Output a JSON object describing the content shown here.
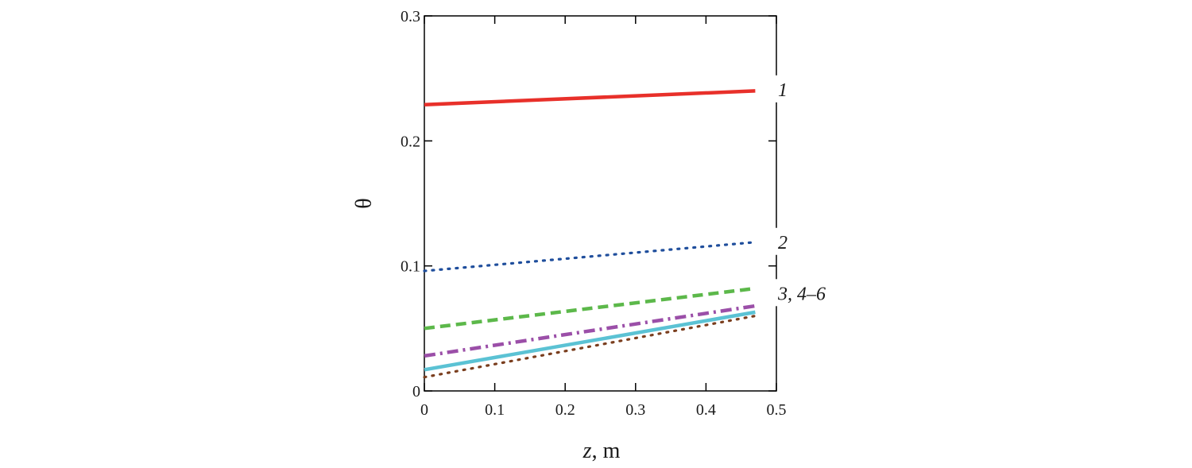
{
  "chart_data": {
    "type": "line",
    "xlabel_var": "z",
    "xlabel_unit": ", m",
    "ylabel": "θ",
    "xlim": [
      0,
      0.5
    ],
    "ylim": [
      0,
      0.3
    ],
    "x_ticks": [
      "0",
      "0.1",
      "0.2",
      "0.3",
      "0.4",
      "0.5"
    ],
    "y_ticks": [
      "0",
      "0.1",
      "0.2",
      "0.3"
    ],
    "grid": false,
    "series": [
      {
        "color": "#e8302a",
        "style": "solid",
        "x": [
          0,
          0.47
        ],
        "y": [
          0.229,
          0.24
        ]
      },
      {
        "color": "#1f4e9c",
        "style": "dotted",
        "x": [
          0,
          0.47
        ],
        "y": [
          0.096,
          0.119
        ]
      },
      {
        "color": "#5cb84a",
        "style": "dashed",
        "x": [
          0,
          0.47
        ],
        "y": [
          0.05,
          0.082
        ]
      },
      {
        "color": "#9b4fa8",
        "style": "dashdot",
        "x": [
          0,
          0.47
        ],
        "y": [
          0.028,
          0.068
        ]
      },
      {
        "color": "#5bc2d4",
        "style": "solid",
        "x": [
          0,
          0.47
        ],
        "y": [
          0.017,
          0.063
        ]
      },
      {
        "color": "#7a3e1e",
        "style": "dotted",
        "x": [
          0,
          0.47
        ],
        "y": [
          0.011,
          0.06
        ]
      }
    ],
    "curve_labels": [
      {
        "text": "1",
        "y": 0.241
      },
      {
        "text": "2",
        "y": 0.119
      },
      {
        "text": "3, 4–6",
        "y": 0.078
      }
    ]
  }
}
